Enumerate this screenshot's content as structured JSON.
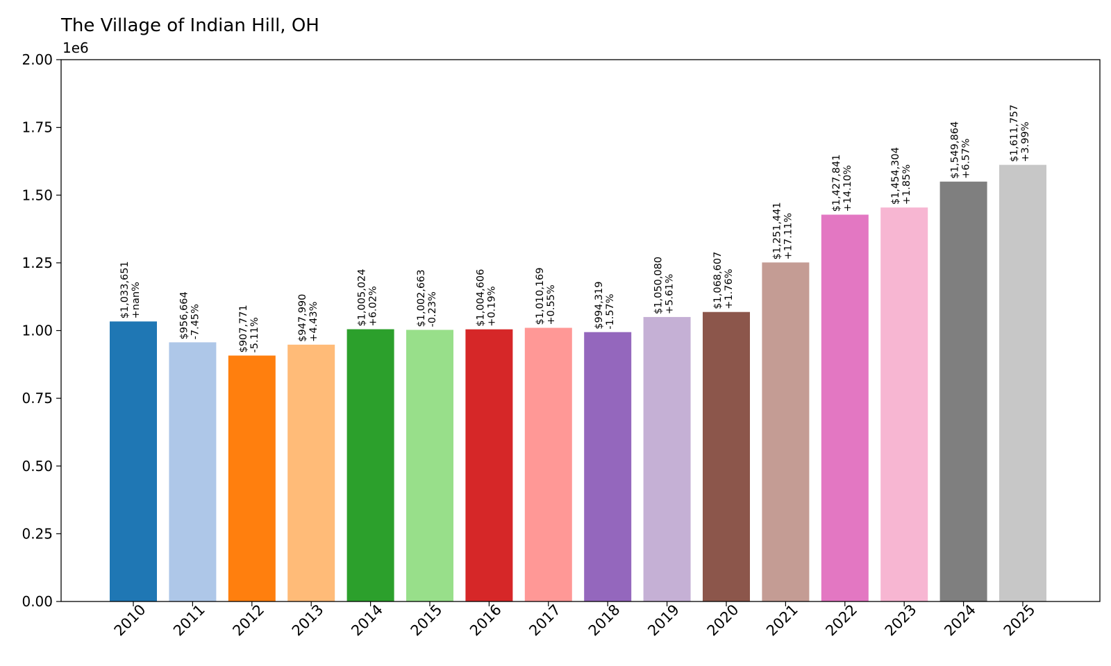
{
  "chart_data": {
    "type": "bar",
    "title": "The Village of Indian Hill, OH",
    "xlabel": "",
    "ylabel": "",
    "y_offset_label": "1e6",
    "ylim": [
      0,
      2000000
    ],
    "y_ticks": [
      0,
      250000,
      500000,
      750000,
      1000000,
      1250000,
      1500000,
      1750000,
      2000000
    ],
    "y_tick_labels": [
      "0.00",
      "0.25",
      "0.50",
      "0.75",
      "1.00",
      "1.25",
      "1.50",
      "1.75",
      "2.00"
    ],
    "grid": false,
    "legend": "none",
    "categories": [
      "2010",
      "2011",
      "2012",
      "2013",
      "2014",
      "2015",
      "2016",
      "2017",
      "2018",
      "2019",
      "2020",
      "2021",
      "2022",
      "2023",
      "2024",
      "2025"
    ],
    "values": [
      1033651,
      956664,
      907771,
      947990,
      1005024,
      1002663,
      1004606,
      1010169,
      994319,
      1050080,
      1068607,
      1251441,
      1427841,
      1454304,
      1549864,
      1611757
    ],
    "value_labels": [
      "$1,033,651",
      "$956,664",
      "$907,771",
      "$947,990",
      "$1,005,024",
      "$1,002,663",
      "$1,004,606",
      "$1,010,169",
      "$994,319",
      "$1,050,080",
      "$1,068,607",
      "$1,251,441",
      "$1,427,841",
      "$1,454,304",
      "$1,549,864",
      "$1,611,757"
    ],
    "change_labels": [
      "+nan%",
      "-7.45%",
      "-5.11%",
      "+4.43%",
      "+6.02%",
      "-0.23%",
      "+0.19%",
      "+0.55%",
      "-1.57%",
      "+5.61%",
      "+1.76%",
      "+17.11%",
      "+14.10%",
      "+1.85%",
      "+6.57%",
      "+3.99%"
    ],
    "colors": [
      "#1f77b4",
      "#aec7e8",
      "#ff7f0e",
      "#ffbb78",
      "#2ca02c",
      "#98df8a",
      "#d62728",
      "#ff9896",
      "#9467bd",
      "#c5b0d5",
      "#8c564b",
      "#c49c94",
      "#e377c2",
      "#f7b6d2",
      "#7f7f7f",
      "#c7c7c7"
    ]
  }
}
